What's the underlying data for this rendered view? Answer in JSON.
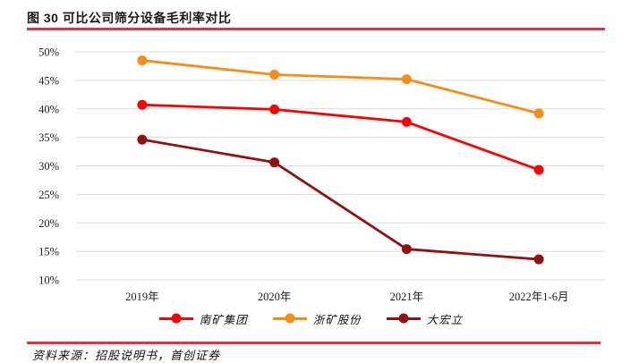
{
  "figure": {
    "title": "图 30 可比公司筛分设备毛利率对比",
    "source": "资料来源：招股说明书，首创证券"
  },
  "colors": {
    "rule_accent": "#e62e40",
    "grid": "#dcdcdc",
    "tick_text": "#1a1a1a"
  },
  "chart_data": {
    "type": "line",
    "title": "可比公司筛分设备毛利率对比",
    "categories": [
      "2019年",
      "2020年",
      "2021年",
      "2022年1-6月"
    ],
    "series": [
      {
        "name": "南矿集团",
        "color": "#fe0000",
        "values": [
          40.7,
          39.9,
          37.7,
          29.3
        ]
      },
      {
        "name": "浙矿股份",
        "color": "#f88c1a",
        "values": [
          48.5,
          46.0,
          45.2,
          39.2
        ]
      },
      {
        "name": "大宏立",
        "color": "#8e1312",
        "values": [
          34.6,
          30.6,
          15.4,
          13.6
        ]
      }
    ],
    "ylim": [
      10,
      50
    ],
    "yticks": [
      10,
      15,
      20,
      25,
      30,
      35,
      40,
      45,
      50
    ],
    "ytick_labels": [
      "10%",
      "15%",
      "20%",
      "25%",
      "30%",
      "35%",
      "40%",
      "45%",
      "50%"
    ],
    "xlabel": "",
    "ylabel": "",
    "grid": true,
    "legend_position": "bottom"
  }
}
